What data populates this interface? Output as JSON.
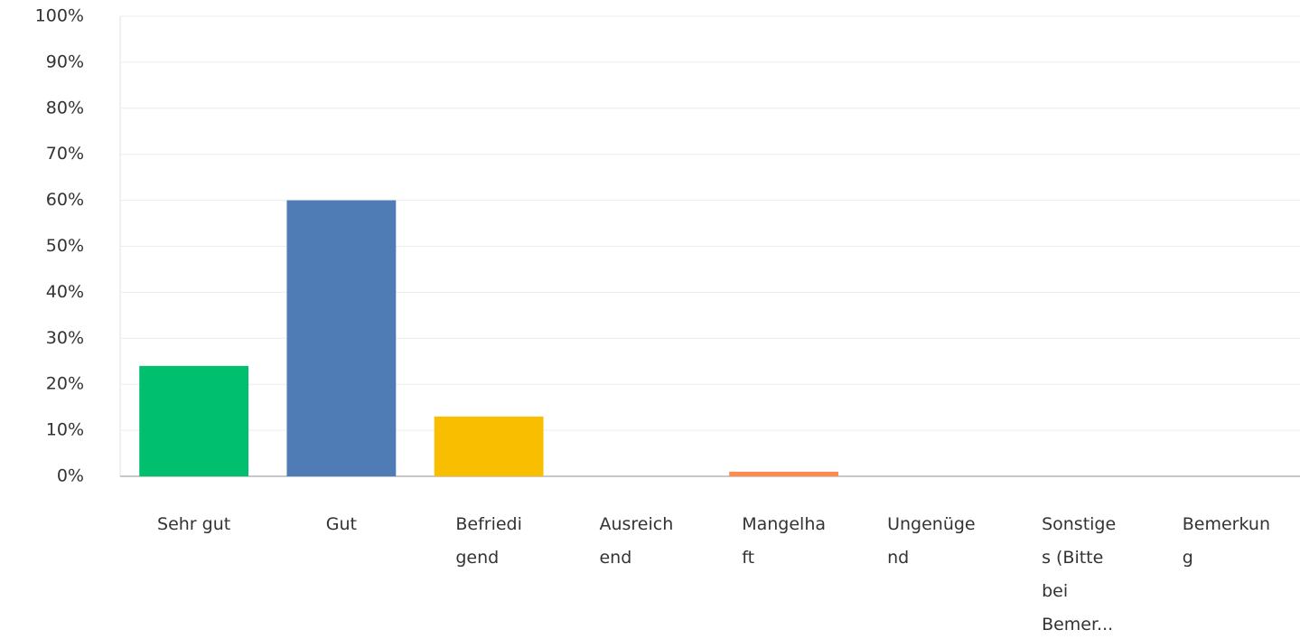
{
  "chart_data": {
    "type": "bar",
    "categories": [
      "Sehr gut",
      "Gut",
      "Befriedi\ngend",
      "Ausreich\nend",
      "Mangelha\nft",
      "Ungenüge\nnd",
      "Sonstige\ns (Bitte\nbei\nBemer...",
      "Bemerkun\ng"
    ],
    "values": [
      24,
      60,
      13,
      0,
      1,
      0,
      0,
      0
    ],
    "colors": [
      "#00bf6f",
      "#507cb6",
      "#f9be00",
      "#6bc8cd",
      "#ff8b4f",
      "#7d6db4",
      "#d25f90",
      "#dbd7d3"
    ],
    "ylim": [
      0,
      100
    ],
    "yticks": [
      {
        "value": 0,
        "label": "0%"
      },
      {
        "value": 10,
        "label": "10%"
      },
      {
        "value": 20,
        "label": "20%"
      },
      {
        "value": 30,
        "label": "30%"
      },
      {
        "value": 40,
        "label": "40%"
      },
      {
        "value": 50,
        "label": "50%"
      },
      {
        "value": 60,
        "label": "60%"
      },
      {
        "value": 70,
        "label": "70%"
      },
      {
        "value": 80,
        "label": "80%"
      },
      {
        "value": 90,
        "label": "90%"
      },
      {
        "value": 100,
        "label": "100%"
      }
    ],
    "grid": true
  }
}
